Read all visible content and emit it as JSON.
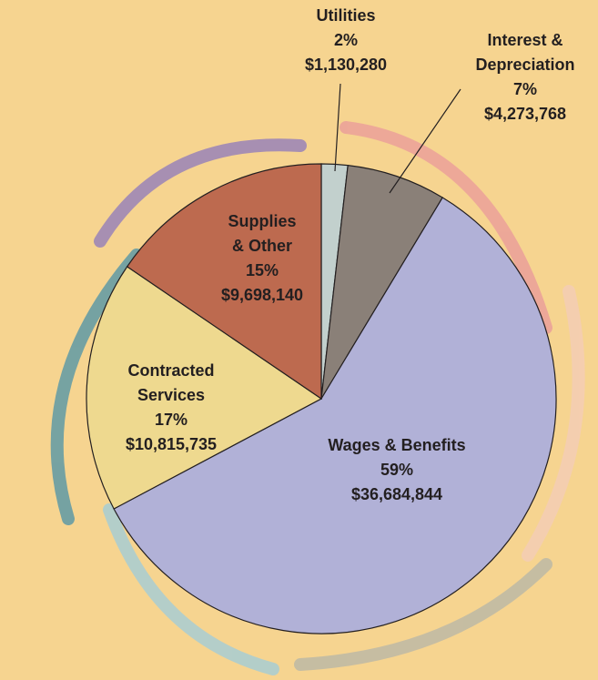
{
  "chart_data": {
    "type": "pie",
    "categories": [
      [
        "Utilities"
      ],
      [
        "Interest &",
        "Depreciation"
      ],
      [
        "Wages & Benefits"
      ],
      [
        "Contracted",
        "Services"
      ],
      [
        "Supplies",
        "& Other"
      ]
    ],
    "values": [
      1130280,
      4273768,
      36684844,
      10815735,
      9698140
    ],
    "value_labels": [
      "$1,130,280",
      "$4,273,768",
      "$36,684,844",
      "$10,815,735",
      "$9,698,140"
    ],
    "percent_labels": [
      "2%",
      "7%",
      "59%",
      "17%",
      "15%"
    ],
    "colors": [
      "#c2d0cd",
      "#8a8078",
      "#b1b1d7",
      "#eed98f",
      "#bd6a4f"
    ]
  }
}
